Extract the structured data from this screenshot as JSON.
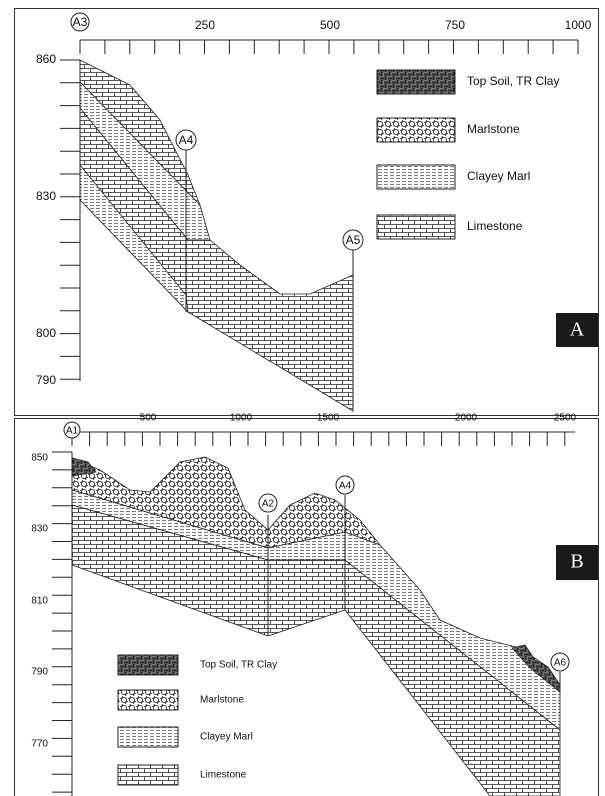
{
  "panel_a": {
    "label": "A",
    "boreholes": [
      "A3",
      "A4",
      "A5"
    ],
    "x_ticks": [
      "250",
      "500",
      "750",
      "1000"
    ],
    "y_ticks": [
      "860",
      "830",
      "800",
      "790"
    ],
    "legend": [
      "Top Soil, TR Clay",
      "Marlstone",
      "Clayey Marl",
      "Limestone"
    ]
  },
  "panel_b": {
    "label": "B",
    "boreholes": [
      "A1",
      "A2",
      "A4",
      "A6"
    ],
    "x_ticks": [
      "500",
      "1000",
      "1500",
      "2000",
      "2500"
    ],
    "y_ticks": [
      "850",
      "830",
      "810",
      "790",
      "770"
    ],
    "legend": [
      "Top Soil, TR Clay",
      "Marlstone",
      "Clayey Marl",
      "Limestone"
    ]
  }
}
